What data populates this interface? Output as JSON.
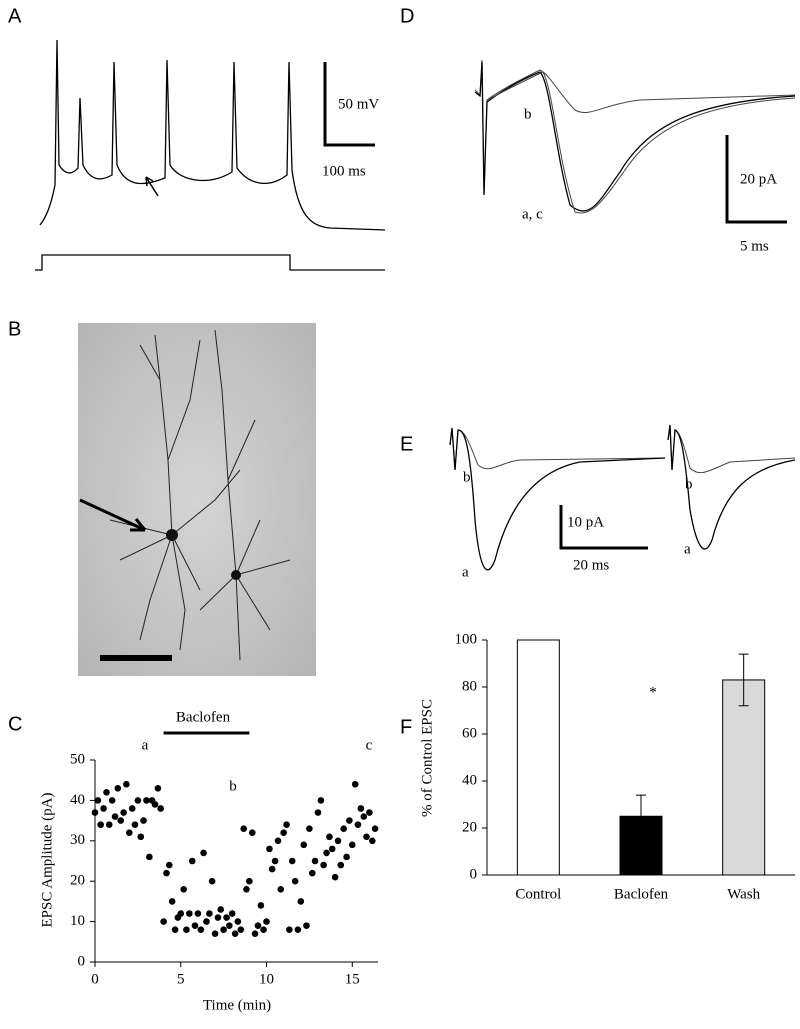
{
  "panels": {
    "A": {
      "label": "A",
      "scale_y": "50 mV",
      "scale_x": "100 ms"
    },
    "B": {
      "label": "B"
    },
    "C": {
      "label": "C"
    },
    "D": {
      "label": "D",
      "trace_b": "b",
      "trace_ac": "a, c",
      "scale_y": "20 pA",
      "scale_x": "5 ms"
    },
    "E": {
      "label": "E",
      "left_b": "b",
      "left_a": "a",
      "right_b": "b",
      "right_a": "a",
      "scale_y": "10 pA",
      "scale_x": "20 ms"
    },
    "F": {
      "label": "F"
    }
  },
  "chart_data": [
    {
      "type": "scatter",
      "x_label": "Time (min)",
      "y_label": "EPSC Amplitude (pA)",
      "treatment": "Baclofen",
      "treatment_span": [
        4,
        9
      ],
      "annotations": [
        "a",
        "b",
        "c"
      ],
      "color": "#000000",
      "x": [
        0,
        0.17,
        0.33,
        0.5,
        0.67,
        0.83,
        1,
        1.17,
        1.33,
        1.5,
        1.67,
        1.83,
        2,
        2.17,
        2.33,
        2.5,
        2.67,
        2.83,
        3,
        3.17,
        3.33,
        3.5,
        3.67,
        3.83,
        4,
        4.17,
        4.33,
        4.5,
        4.67,
        4.83,
        5,
        5.17,
        5.33,
        5.5,
        5.67,
        5.83,
        6,
        6.17,
        6.33,
        6.5,
        6.67,
        6.83,
        7,
        7.17,
        7.33,
        7.5,
        7.67,
        7.83,
        8,
        8.17,
        8.33,
        8.5,
        8.67,
        8.83,
        9,
        9.17,
        9.33,
        9.5,
        9.67,
        9.83,
        10,
        10.17,
        10.33,
        10.5,
        10.67,
        10.83,
        11,
        11.17,
        11.33,
        11.5,
        11.67,
        11.83,
        12,
        12.17,
        12.33,
        12.5,
        12.67,
        12.83,
        13,
        13.17,
        13.33,
        13.5,
        13.67,
        13.83,
        14,
        14.17,
        14.33,
        14.5,
        14.67,
        14.83,
        15,
        15.17,
        15.33,
        15.5,
        15.67,
        15.83,
        16,
        16.17,
        16.33
      ],
      "values": [
        37,
        40,
        34,
        38,
        42,
        34,
        40,
        36,
        43,
        35,
        37,
        44,
        32,
        38,
        34,
        40,
        31,
        35,
        40,
        26,
        40,
        39,
        43,
        38,
        10,
        22,
        24,
        15,
        8,
        11,
        12,
        18,
        8,
        12,
        25,
        9,
        12,
        8,
        27,
        10,
        12,
        20,
        7,
        11,
        13,
        8,
        11,
        9,
        12,
        7,
        10,
        8,
        33,
        18,
        20,
        32,
        7,
        9,
        14,
        8,
        10,
        28,
        23,
        25,
        30,
        18,
        32,
        34,
        8,
        25,
        20,
        8,
        15,
        29,
        9,
        33,
        22,
        25,
        37,
        40,
        24,
        27,
        31,
        28,
        21,
        30,
        24,
        33,
        26,
        35,
        29,
        44,
        34,
        38,
        36,
        31,
        37,
        30,
        33
      ],
      "xlim": [
        0,
        16.5
      ],
      "xticks": [
        0,
        5,
        10,
        15
      ],
      "ylim": [
        0,
        50
      ],
      "yticks": [
        0,
        10,
        20,
        30,
        40,
        50
      ]
    },
    {
      "type": "bar",
      "y_label": "% of Control EPSC",
      "categories": [
        "Control",
        "Baclofen",
        "Wash"
      ],
      "values": [
        100,
        25,
        83
      ],
      "errors": [
        0,
        9,
        11
      ],
      "colors": [
        "#ffffff",
        "#000000",
        "#d9d9d9"
      ],
      "significance": "*",
      "ylim": [
        0,
        100
      ],
      "yticks": [
        0,
        20,
        40,
        60,
        80,
        100
      ]
    }
  ]
}
